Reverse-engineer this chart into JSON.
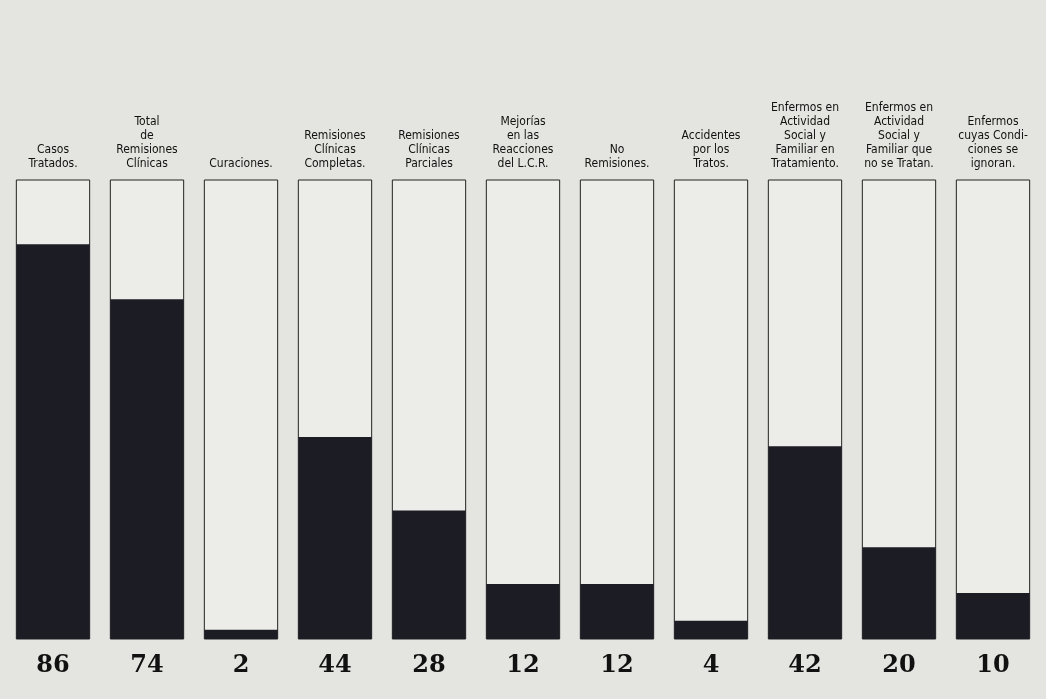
{
  "chart_data": {
    "type": "bar",
    "categories": [
      "Casos\nTratados.",
      "Total\nde\nRemisiones\nClínicas",
      "Curaciones.",
      "Remisiones\nClínicas\nCompletas.",
      "Remisiones\nClínicas\nParciales",
      "Mejorías\nen las\nReacciones\ndel L.C.R.",
      "No\nRemisiones.",
      "Accidentes\npor los\nTratos.",
      "Enfermos en\nActividad\nSocial y\nFamiliar en\nTratamiento.",
      "Enfermos en\nActividad\nSocial y\nFamiliar que\nno se Tratan.",
      "Enfermos\ncuyas Condi-\nciones se\nignoran."
    ],
    "values": [
      86,
      74,
      2,
      44,
      28,
      12,
      12,
      4,
      42,
      20,
      10
    ],
    "color": "#1c1c24",
    "data_labels": true
  }
}
